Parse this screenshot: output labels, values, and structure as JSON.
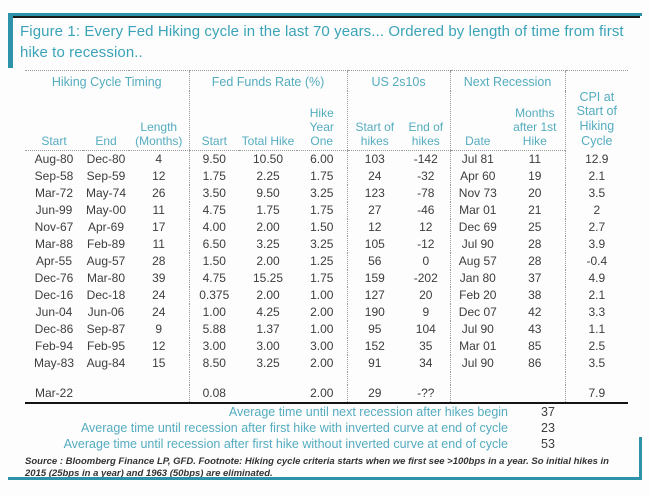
{
  "title": "Figure 1: Every Fed Hiking cycle in the last 70 years... Ordered by length of time from first hike to recession..",
  "colors": {
    "accent_teal": "#2d93a9",
    "title_text": "#3ba3b8",
    "header_text": "#54acbf",
    "data_text": "#3d3d3d",
    "line_black": "#1a1a1a"
  },
  "table": {
    "groups": [
      {
        "label": "Hiking Cycle Timing"
      },
      {
        "label": "Fed Funds Rate (%)"
      },
      {
        "label": "US 2s10s"
      },
      {
        "label": "Next Recession"
      }
    ],
    "cpi_header": "CPI at Start of Hiking Cycle",
    "columns": [
      "Start",
      "End",
      "Length (Months)",
      "Start",
      "Total Hike",
      "Hike Year One",
      "Start of hikes",
      "End of hikes",
      "Date",
      "Months after 1st Hike"
    ],
    "rows": [
      [
        "Aug-80",
        "Dec-80",
        "4",
        "9.50",
        "10.50",
        "6.00",
        "103",
        "-142",
        "Jul 81",
        "11",
        "12.9"
      ],
      [
        "Sep-58",
        "Sep-59",
        "12",
        "1.75",
        "2.25",
        "1.75",
        "24",
        "-32",
        "Apr 60",
        "19",
        "2.1"
      ],
      [
        "Mar-72",
        "May-74",
        "26",
        "3.50",
        "9.50",
        "3.25",
        "123",
        "-78",
        "Nov 73",
        "20",
        "3.5"
      ],
      [
        "Jun-99",
        "May-00",
        "11",
        "4.75",
        "1.75",
        "1.75",
        "27",
        "-46",
        "Mar 01",
        "21",
        "2"
      ],
      [
        "Nov-67",
        "Apr-69",
        "17",
        "4.00",
        "2.00",
        "1.50",
        "12",
        "12",
        "Dec 69",
        "25",
        "2.7"
      ],
      [
        "Mar-88",
        "Feb-89",
        "11",
        "6.50",
        "3.25",
        "3.25",
        "105",
        "-12",
        "Jul 90",
        "28",
        "3.9"
      ],
      [
        "Apr-55",
        "Aug-57",
        "28",
        "1.50",
        "2.00",
        "1.25",
        "56",
        "0",
        "Aug 57",
        "28",
        "-0.4"
      ],
      [
        "Dec-76",
        "Mar-80",
        "39",
        "4.75",
        "15.25",
        "1.75",
        "159",
        "-202",
        "Jan 80",
        "37",
        "4.9"
      ],
      [
        "Dec-16",
        "Dec-18",
        "24",
        "0.375",
        "2.00",
        "1.00",
        "127",
        "20",
        "Feb 20",
        "38",
        "2.1"
      ],
      [
        "Jun-04",
        "Jun-06",
        "24",
        "1.00",
        "4.25",
        "2.00",
        "190",
        "9",
        "Dec 07",
        "42",
        "3.3"
      ],
      [
        "Dec-86",
        "Sep-87",
        "9",
        "5.88",
        "1.37",
        "1.00",
        "95",
        "104",
        "Jul 90",
        "43",
        "1.1"
      ],
      [
        "Feb-94",
        "Feb-95",
        "12",
        "3.00",
        "3.00",
        "3.00",
        "152",
        "35",
        "Mar 01",
        "85",
        "2.5"
      ],
      [
        "May-83",
        "Aug-84",
        "15",
        "8.50",
        "3.25",
        "2.00",
        "91",
        "34",
        "Jul 90",
        "86",
        "3.5"
      ]
    ],
    "highlight_row": [
      "Mar-22",
      "",
      "",
      "0.08",
      "",
      "2.00",
      "29",
      "-??",
      "",
      "",
      "7.9"
    ]
  },
  "averages": [
    {
      "label": "Average time until next recession after hikes begin",
      "value": "37"
    },
    {
      "label": "Average time until recession after first hike with inverted curve at end of cycle",
      "value": "23"
    },
    {
      "label": "Average time until recession after first hike without inverted curve at end of cycle",
      "value": "53"
    }
  ],
  "footnote": "Source : Bloomberg Finance LP, GFD. Footnote: Hiking cycle criteria starts when we first see >100bps in a year. So initial hikes in 2015 (25bps in a year) and 1963 (50bps) are eliminated."
}
